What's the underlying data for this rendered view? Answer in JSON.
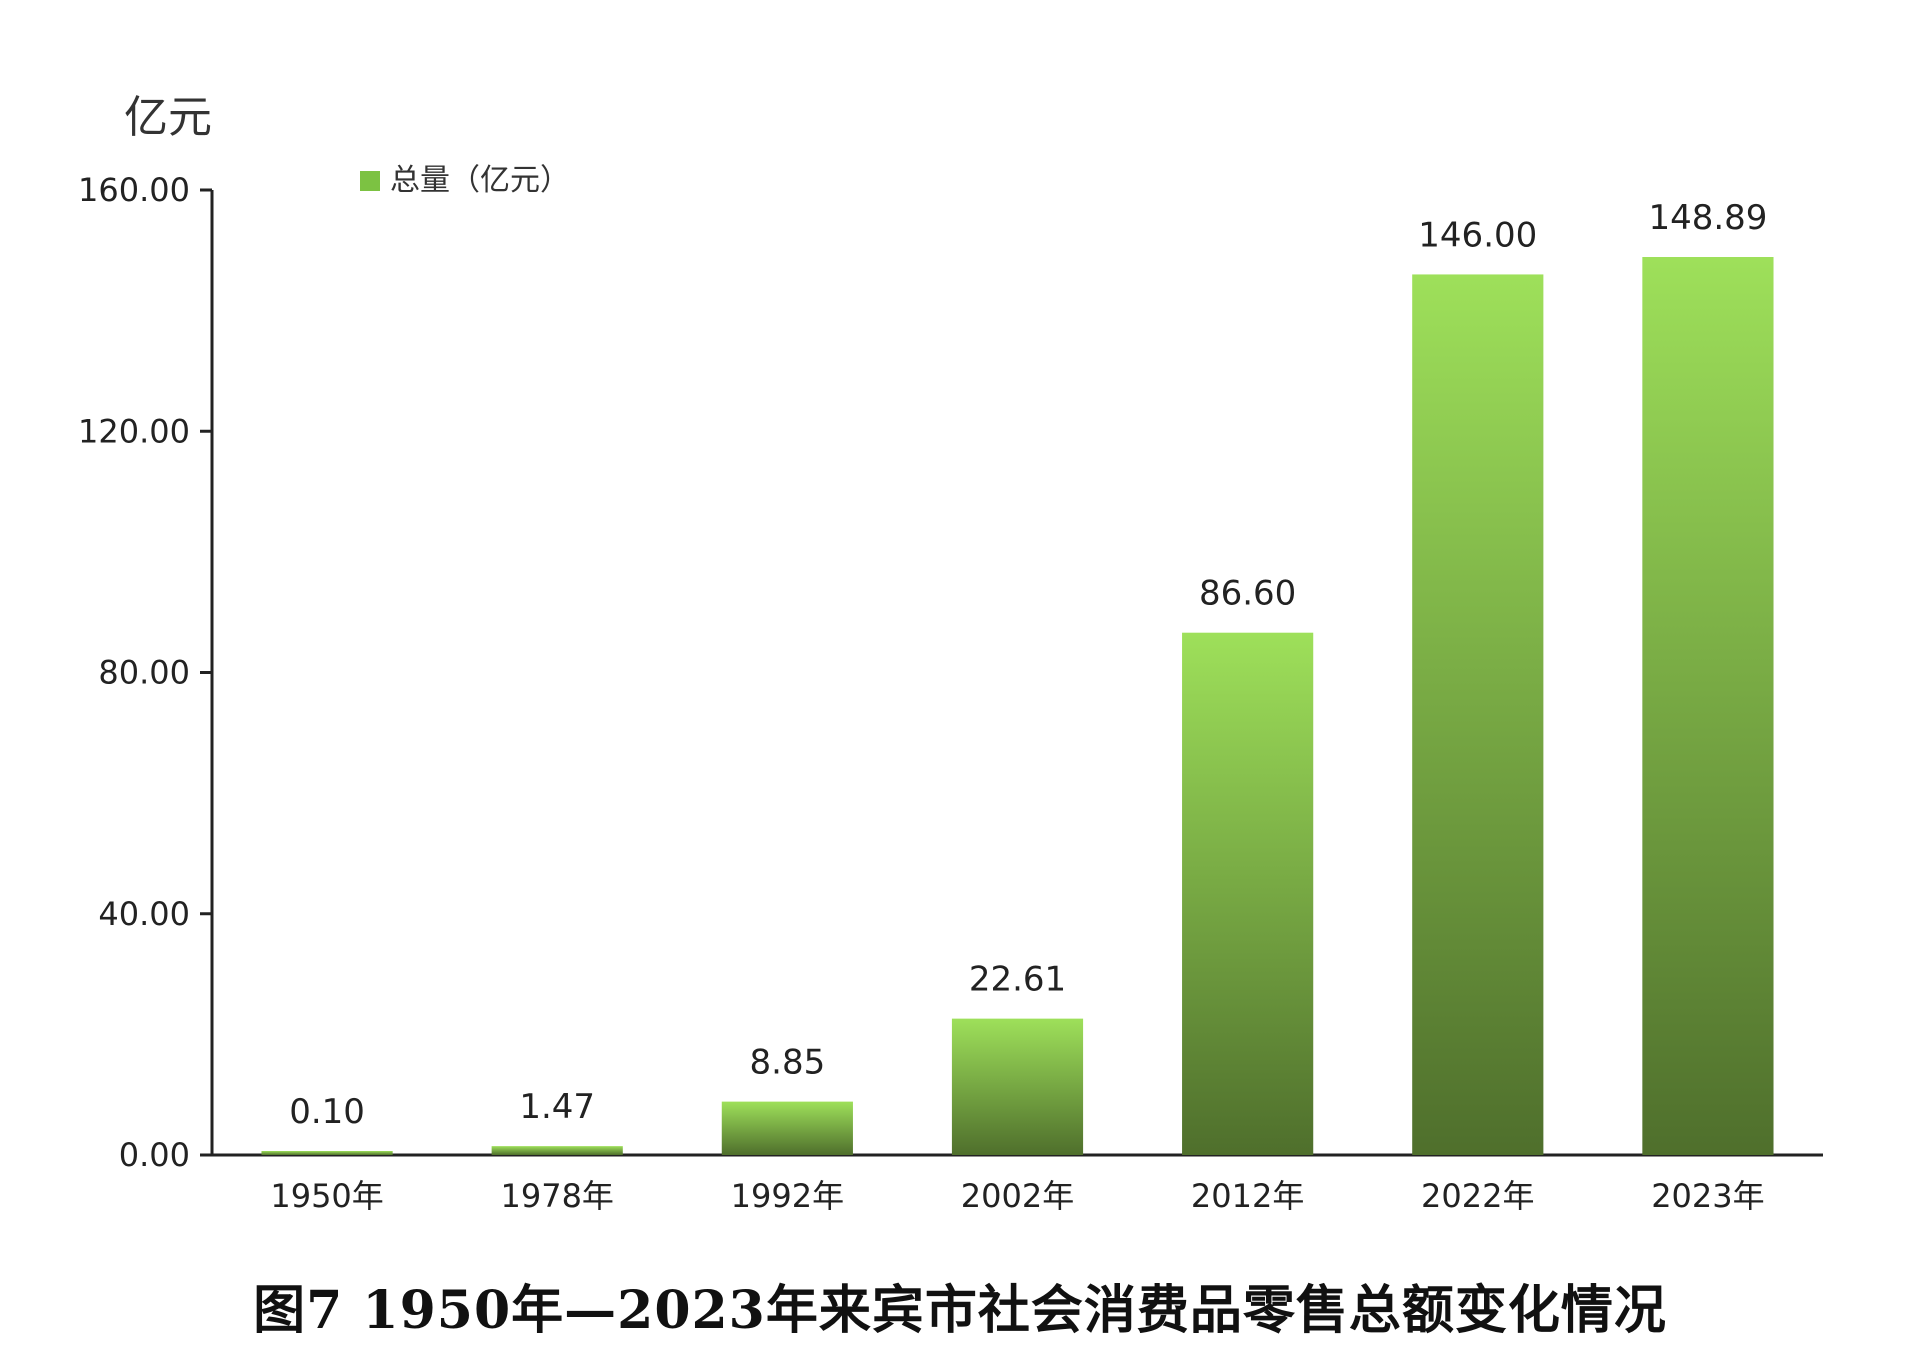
{
  "chart_data": {
    "type": "bar",
    "unit_label": "亿元",
    "categories": [
      "1950年",
      "1978年",
      "1992年",
      "2002年",
      "2012年",
      "2022年",
      "2023年"
    ],
    "series": [
      {
        "name": "总量（亿元）",
        "values": [
          0.1,
          1.47,
          8.85,
          22.61,
          86.6,
          146.0,
          148.89
        ]
      }
    ],
    "data_labels": [
      "0.10",
      "1.47",
      "8.85",
      "22.61",
      "86.60",
      "146.00",
      "148.89"
    ],
    "y_ticks": [
      "0.00",
      "40.00",
      "80.00",
      "120.00",
      "160.00"
    ],
    "ylim": [
      0,
      160
    ],
    "grid": false,
    "legend_position": "top-left",
    "colors": {
      "bar_top": "#9ee05a",
      "bar_bottom": "#4f6f2c",
      "legend_swatch": "#7cc242",
      "axis": "#222222"
    }
  },
  "caption": "图7  1950年—2023年来宾市社会消费品零售总额变化情况"
}
